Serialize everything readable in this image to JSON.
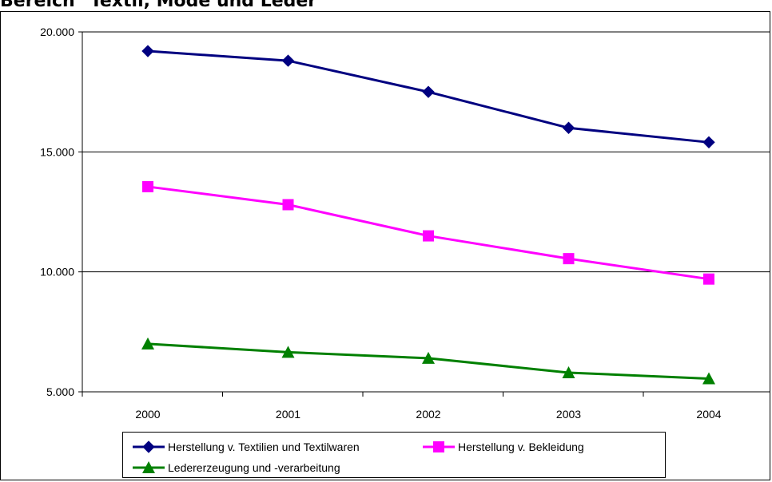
{
  "chart_data": {
    "type": "line",
    "title": "Bereich \"Textil, Mode und Leder\"",
    "x": [
      "2000",
      "2001",
      "2002",
      "2003",
      "2004"
    ],
    "y_ticks": [
      "5.000",
      "10.000",
      "15.000",
      "20.000"
    ],
    "ylim": [
      5000,
      20000
    ],
    "grid": "horizontal",
    "legend_position": "bottom",
    "series": [
      {
        "name": "Herstellung v. Textilien und Textilwaren",
        "color": "#000080",
        "marker": "diamond",
        "values": [
          19200,
          18800,
          17500,
          16000,
          15400
        ]
      },
      {
        "name": "Herstellung v. Bekleidung",
        "color": "#ff00ff",
        "marker": "square",
        "values": [
          13550,
          12800,
          11500,
          10550,
          9700
        ]
      },
      {
        "name": "Ledererzeugung und -verarbeitung",
        "color": "#008000",
        "marker": "triangle",
        "values": [
          7000,
          6650,
          6400,
          5800,
          5550
        ]
      }
    ]
  }
}
